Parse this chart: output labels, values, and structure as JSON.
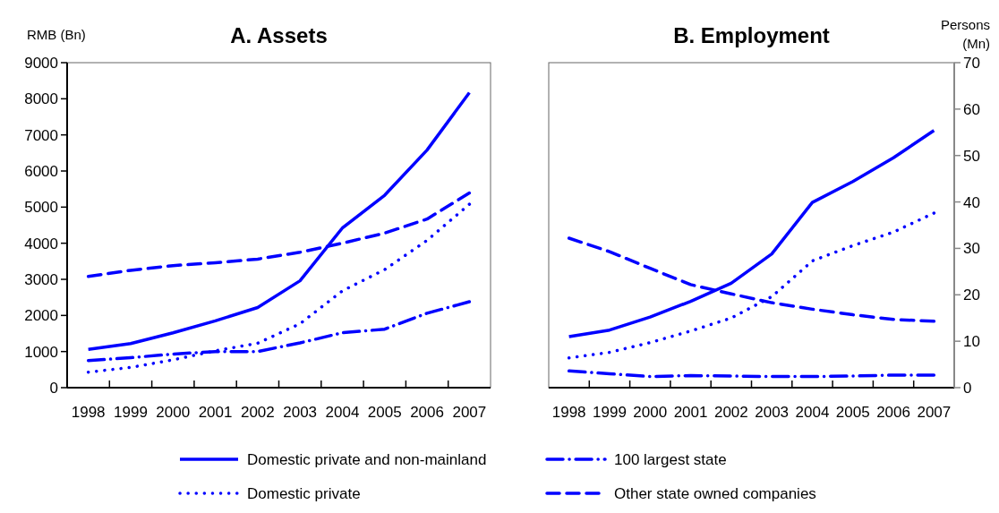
{
  "chart_data": [
    {
      "type": "line",
      "title": "A. Assets",
      "ylabel": "RMB (Bn)",
      "categories": [
        "1998",
        "1999",
        "2000",
        "2001",
        "2002",
        "2003",
        "2004",
        "2005",
        "2006",
        "2007"
      ],
      "ylim": [
        0,
        9000
      ],
      "yticks": [
        0,
        1000,
        2000,
        3000,
        4000,
        5000,
        6000,
        7000,
        8000,
        9000
      ],
      "legend": "bottom",
      "series": [
        {
          "name": "Domestic private and non-mainland",
          "color": "#0000ff",
          "line_style": "solid",
          "values": [
            1060,
            1220,
            1520,
            1850,
            2220,
            2960,
            4420,
            5330,
            6580,
            8170
          ]
        },
        {
          "name": "100 largest state",
          "color": "#0000ff",
          "line_style": "dashdot",
          "values": [
            750,
            830,
            930,
            1000,
            1000,
            1240,
            1520,
            1620,
            2060,
            2380
          ]
        },
        {
          "name": "Domestic private",
          "color": "#0000ff",
          "line_style": "dotted",
          "values": [
            430,
            560,
            770,
            1020,
            1230,
            1770,
            2680,
            3270,
            4080,
            5080
          ]
        },
        {
          "name": "Other state owned companies",
          "color": "#0000ff",
          "line_style": "dashed",
          "values": [
            3080,
            3250,
            3380,
            3460,
            3560,
            3750,
            4000,
            4280,
            4670,
            5390
          ]
        }
      ]
    },
    {
      "type": "line",
      "title": "B. Employment",
      "y2label": "Persons (Mn)",
      "categories": [
        "1998",
        "1999",
        "2000",
        "2001",
        "2002",
        "2003",
        "2004",
        "2005",
        "2006",
        "2007"
      ],
      "y2lim": [
        0,
        70
      ],
      "y2ticks": [
        0,
        10,
        20,
        30,
        40,
        50,
        60,
        70
      ],
      "series": [
        {
          "color": "#0000ff",
          "line_style": "solid",
          "axis": "y2",
          "values": [
            11.0,
            12.4,
            15.2,
            18.6,
            22.5,
            28.8,
            39.9,
            44.4,
            49.5,
            55.4
          ]
        },
        {
          "color": "#0000ff",
          "line_style": "dashdot",
          "axis": "y2",
          "values": [
            3.6,
            3.0,
            2.4,
            2.6,
            2.5,
            2.4,
            2.4,
            2.5,
            2.7,
            2.7
          ]
        },
        {
          "color": "#0000ff",
          "line_style": "dotted",
          "axis": "y2",
          "values": [
            6.4,
            7.6,
            9.7,
            12.2,
            15.0,
            19.6,
            27.3,
            30.6,
            33.5,
            37.6
          ]
        },
        {
          "color": "#0000ff",
          "line_style": "dashed",
          "axis": "y2",
          "values": [
            32.2,
            29.3,
            25.7,
            22.2,
            20.2,
            18.3,
            16.9,
            15.7,
            14.7,
            14.3
          ]
        }
      ]
    }
  ]
}
